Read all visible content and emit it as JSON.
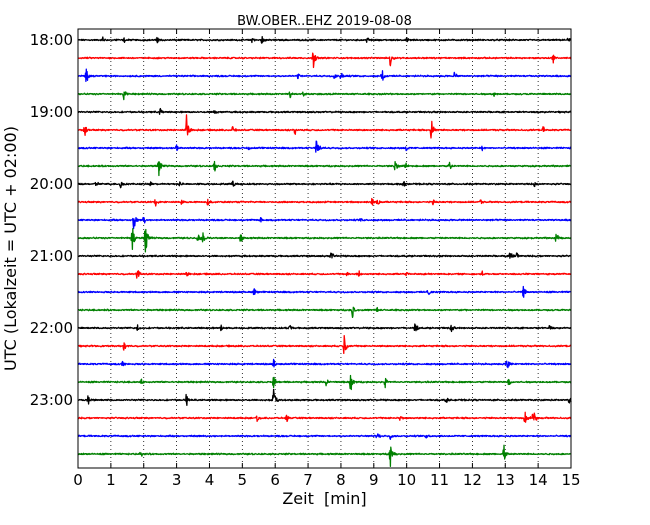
{
  "chart_data": {
    "type": "line",
    "title": "BW.OBER..EHZ 2019-08-08",
    "xlabel": "Zeit  [min]",
    "ylabel": "UTC (Lokalzeit = UTC + 02:00)",
    "xlim": [
      0,
      15
    ],
    "x_ticks": [
      "0",
      "1",
      "2",
      "3",
      "4",
      "5",
      "6",
      "7",
      "8",
      "9",
      "10",
      "11",
      "12",
      "13",
      "14",
      "15"
    ],
    "y_ticks": [
      "18:00",
      "19:00",
      "20:00",
      "21:00",
      "22:00",
      "23:00"
    ],
    "grid": "vertical-dotted",
    "line_colors": [
      "#000000",
      "#ff0000",
      "#0000ff",
      "#008000"
    ],
    "traces": [
      {
        "start": "18:00",
        "color": "#000000",
        "events": [
          [
            0.75,
            0.25
          ],
          [
            1.4,
            0.2
          ],
          [
            2.4,
            0.25
          ],
          [
            5.3,
            0.25
          ],
          [
            5.6,
            0.3
          ],
          [
            8.8,
            0.25
          ],
          [
            10.0,
            0.2
          ],
          [
            14.9,
            0.2
          ]
        ]
      },
      {
        "start": "18:15",
        "color": "#ff0000",
        "events": [
          [
            7.15,
            0.85
          ],
          [
            9.5,
            0.6
          ],
          [
            14.45,
            0.35
          ]
        ]
      },
      {
        "start": "18:30",
        "color": "#0000ff",
        "events": [
          [
            0.25,
            0.55
          ],
          [
            6.7,
            0.3
          ],
          [
            7.8,
            0.2
          ],
          [
            8.0,
            0.25
          ],
          [
            9.25,
            0.6
          ],
          [
            11.45,
            0.3
          ]
        ]
      },
      {
        "start": "18:45",
        "color": "#008000",
        "events": [
          [
            1.4,
            0.45
          ],
          [
            6.45,
            0.3
          ],
          [
            6.85,
            0.2
          ],
          [
            12.65,
            0.25
          ]
        ]
      },
      {
        "start": "19:00",
        "color": "#000000",
        "events": [
          [
            2.5,
            0.3
          ],
          [
            4.15,
            0.2
          ]
        ]
      },
      {
        "start": "19:15",
        "color": "#ff0000",
        "events": [
          [
            0.2,
            0.45
          ],
          [
            3.3,
            1.0
          ],
          [
            4.7,
            0.3
          ],
          [
            6.6,
            0.35
          ],
          [
            10.75,
            0.75
          ],
          [
            14.15,
            0.25
          ]
        ]
      },
      {
        "start": "19:30",
        "color": "#0000ff",
        "events": [
          [
            3.0,
            0.25
          ],
          [
            5.2,
            0.2
          ],
          [
            7.25,
            0.8
          ],
          [
            10.0,
            0.25
          ],
          [
            12.3,
            0.2
          ]
        ]
      },
      {
        "start": "19:45",
        "color": "#008000",
        "events": [
          [
            2.45,
            0.8
          ],
          [
            4.15,
            0.4
          ],
          [
            9.65,
            0.35
          ],
          [
            9.95,
            0.3
          ],
          [
            11.3,
            0.35
          ]
        ]
      },
      {
        "start": "20:00",
        "color": "#000000",
        "events": [
          [
            0.55,
            0.25
          ],
          [
            1.3,
            0.3
          ],
          [
            2.2,
            0.2
          ],
          [
            3.1,
            0.2
          ],
          [
            4.7,
            0.25
          ],
          [
            9.9,
            0.2
          ],
          [
            13.9,
            0.25
          ]
        ]
      },
      {
        "start": "20:15",
        "color": "#ff0000",
        "events": [
          [
            2.35,
            0.35
          ],
          [
            3.15,
            0.3
          ],
          [
            3.95,
            0.25
          ],
          [
            8.95,
            0.35
          ],
          [
            9.1,
            0.3
          ],
          [
            10.8,
            0.25
          ],
          [
            12.25,
            0.2
          ]
        ]
      },
      {
        "start": "20:30",
        "color": "#0000ff",
        "events": [
          [
            1.7,
            0.75
          ],
          [
            2.0,
            0.4
          ],
          [
            5.55,
            0.25
          ],
          [
            8.6,
            0.2
          ]
        ]
      },
      {
        "start": "20:45",
        "color": "#008000",
        "events": [
          [
            1.65,
            1.2
          ],
          [
            2.05,
            1.3
          ],
          [
            3.65,
            0.45
          ],
          [
            3.8,
            0.35
          ],
          [
            4.95,
            0.35
          ],
          [
            14.55,
            0.4
          ]
        ]
      },
      {
        "start": "21:00",
        "color": "#000000",
        "events": [
          [
            7.7,
            0.35
          ],
          [
            13.15,
            0.45
          ],
          [
            13.35,
            0.3
          ]
        ]
      },
      {
        "start": "21:15",
        "color": "#ff0000",
        "events": [
          [
            1.8,
            0.45
          ],
          [
            3.3,
            0.2
          ],
          [
            8.2,
            0.25
          ],
          [
            8.55,
            0.25
          ],
          [
            10.0,
            0.2
          ],
          [
            12.3,
            0.2
          ]
        ]
      },
      {
        "start": "21:30",
        "color": "#0000ff",
        "events": [
          [
            5.35,
            0.35
          ],
          [
            10.65,
            0.3
          ],
          [
            13.55,
            0.45
          ]
        ]
      },
      {
        "start": "21:45",
        "color": "#008000",
        "events": [
          [
            8.35,
            0.5
          ],
          [
            9.1,
            0.2
          ]
        ]
      },
      {
        "start": "22:00",
        "color": "#000000",
        "events": [
          [
            1.8,
            0.25
          ],
          [
            4.35,
            0.25
          ],
          [
            6.45,
            0.3
          ],
          [
            10.25,
            0.35
          ],
          [
            11.35,
            0.3
          ],
          [
            14.35,
            0.25
          ]
        ]
      },
      {
        "start": "22:15",
        "color": "#ff0000",
        "events": [
          [
            1.4,
            0.35
          ],
          [
            8.1,
            0.75
          ]
        ]
      },
      {
        "start": "22:30",
        "color": "#0000ff",
        "events": [
          [
            1.35,
            0.2
          ],
          [
            5.95,
            0.3
          ],
          [
            13.05,
            0.65
          ]
        ]
      },
      {
        "start": "22:45",
        "color": "#008000",
        "events": [
          [
            1.9,
            0.25
          ],
          [
            5.95,
            0.45
          ],
          [
            7.55,
            0.3
          ],
          [
            8.3,
            0.9
          ],
          [
            9.35,
            0.35
          ],
          [
            13.1,
            0.3
          ]
        ]
      },
      {
        "start": "23:00",
        "color": "#000000",
        "events": [
          [
            0.3,
            0.35
          ],
          [
            3.3,
            0.45
          ],
          [
            5.95,
            0.85
          ],
          [
            11.2,
            0.3
          ],
          [
            14.95,
            0.3
          ]
        ]
      },
      {
        "start": "23:15",
        "color": "#ff0000",
        "events": [
          [
            5.45,
            0.25
          ],
          [
            6.35,
            0.3
          ],
          [
            9.8,
            0.2
          ],
          [
            13.6,
            0.65
          ],
          [
            13.85,
            0.8
          ]
        ]
      },
      {
        "start": "23:30",
        "color": "#0000ff",
        "events": [
          [
            9.1,
            0.35
          ],
          [
            9.5,
            0.2
          ],
          [
            10.6,
            0.2
          ]
        ]
      },
      {
        "start": "23:45",
        "color": "#008000",
        "events": [
          [
            1.9,
            0.25
          ],
          [
            9.5,
            0.85
          ],
          [
            12.95,
            0.7
          ]
        ]
      }
    ]
  }
}
